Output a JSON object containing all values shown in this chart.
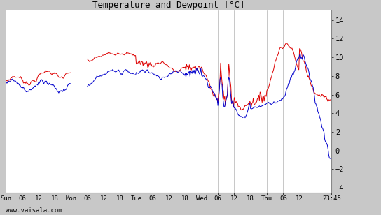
{
  "title": "Temperature and Dewpoint [°C]",
  "ylabel_right_ticks": [
    -4,
    -2,
    0,
    2,
    4,
    6,
    8,
    10,
    12,
    14
  ],
  "ylim": [
    -4.5,
    15.0
  ],
  "bg_color": "#ffffff",
  "outer_bg": "#c8c8c8",
  "grid_color": "#b0b0b0",
  "temp_color": "#dd0000",
  "dewp_color": "#0000cc",
  "xlabel_bottom": "www.vaisala.com",
  "xtick_labels": [
    "Sun",
    "06",
    "12",
    "18",
    "Mon",
    "06",
    "12",
    "18",
    "Tue",
    "06",
    "12",
    "18",
    "Wed",
    "06",
    "12",
    "18",
    "Thu",
    "06",
    "12",
    "23:45"
  ],
  "linewidth": 0.7,
  "font_family": "monospace"
}
